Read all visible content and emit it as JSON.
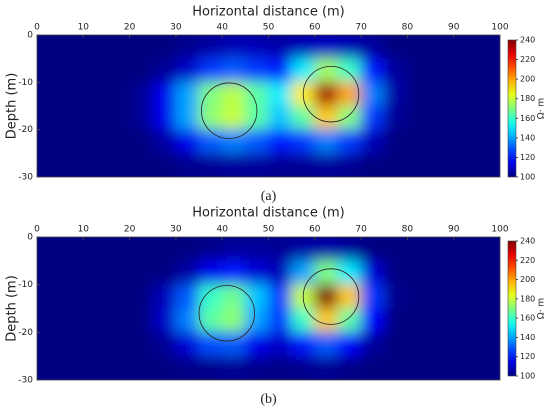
{
  "chart_data": [
    {
      "type": "heatmap",
      "title": "Horizontal distance (m)",
      "ylabel": "Depth (m)",
      "panel_label": "(a)",
      "clabel": "Ω· m",
      "xlim": [
        0,
        100
      ],
      "xticks": [
        0,
        10,
        20,
        30,
        40,
        50,
        60,
        70,
        80,
        90,
        100
      ],
      "ylim": [
        -30,
        0
      ],
      "yticks": [
        0,
        -10,
        -20,
        -30
      ],
      "clim": [
        100,
        240
      ],
      "cticks": [
        100,
        120,
        140,
        160,
        180,
        200,
        220,
        240
      ],
      "x": [
        2.5,
        7.5,
        12.5,
        17.5,
        22.5,
        27.5,
        32.5,
        37.5,
        42.5,
        47.5,
        52.5,
        57.5,
        62.5,
        67.5,
        72.5,
        77.5,
        82.5,
        87.5,
        92.5,
        97.5
      ],
      "y": [
        -2.5,
        -7.5,
        -12.5,
        -17.5,
        -22.5,
        -27.5
      ],
      "z": [
        [
          100,
          100,
          100,
          100,
          100,
          100,
          102,
          105,
          108,
          108,
          106,
          108,
          110,
          108,
          104,
          100,
          100,
          100,
          100,
          100
        ],
        [
          100,
          100,
          100,
          100,
          100,
          103,
          110,
          125,
          130,
          125,
          120,
          150,
          175,
          160,
          120,
          104,
          100,
          100,
          100,
          100
        ],
        [
          100,
          100,
          100,
          100,
          103,
          115,
          140,
          170,
          178,
          165,
          150,
          190,
          235,
          200,
          135,
          105,
          100,
          100,
          100,
          100
        ],
        [
          100,
          100,
          100,
          100,
          103,
          115,
          140,
          172,
          180,
          165,
          145,
          165,
          195,
          170,
          125,
          103,
          100,
          100,
          100,
          100
        ],
        [
          100,
          100,
          100,
          100,
          100,
          105,
          115,
          130,
          135,
          130,
          120,
          125,
          135,
          125,
          108,
          100,
          100,
          100,
          100,
          100
        ],
        [
          100,
          100,
          100,
          100,
          100,
          100,
          102,
          103,
          104,
          104,
          103,
          103,
          104,
          103,
          100,
          100,
          100,
          100,
          100,
          100
        ]
      ],
      "circles": [
        {
          "x": 41.5,
          "y": -16,
          "r": 6
        },
        {
          "x": 63.5,
          "y": -12.5,
          "r": 6
        }
      ]
    },
    {
      "type": "heatmap",
      "title": "Horizontal distance (m)",
      "ylabel": "Depth (m)",
      "panel_label": "(b)",
      "clabel": "Ω· m",
      "xlim": [
        0,
        100
      ],
      "xticks": [
        0,
        10,
        20,
        30,
        40,
        50,
        60,
        70,
        80,
        90,
        100
      ],
      "ylim": [
        -30,
        0
      ],
      "yticks": [
        0,
        -10,
        -20,
        -30
      ],
      "clim": [
        100,
        240
      ],
      "cticks": [
        100,
        120,
        140,
        160,
        180,
        200,
        220,
        240
      ],
      "x": [
        2.5,
        7.5,
        12.5,
        17.5,
        22.5,
        27.5,
        32.5,
        37.5,
        42.5,
        47.5,
        52.5,
        57.5,
        62.5,
        67.5,
        72.5,
        77.5,
        82.5,
        87.5,
        92.5,
        97.5
      ],
      "y": [
        -2.5,
        -7.5,
        -12.5,
        -17.5,
        -22.5,
        -27.5
      ],
      "z": [
        [
          100,
          100,
          100,
          100,
          100,
          100,
          100,
          102,
          104,
          104,
          103,
          105,
          106,
          104,
          100,
          100,
          100,
          100,
          100,
          100
        ],
        [
          100,
          100,
          100,
          100,
          100,
          100,
          105,
          115,
          120,
          112,
          108,
          140,
          170,
          150,
          112,
          100,
          100,
          100,
          100,
          100
        ],
        [
          100,
          100,
          100,
          100,
          100,
          108,
          130,
          160,
          168,
          145,
          125,
          180,
          240,
          195,
          125,
          102,
          100,
          100,
          100,
          100
        ],
        [
          100,
          100,
          100,
          100,
          100,
          110,
          135,
          165,
          172,
          140,
          125,
          160,
          195,
          165,
          118,
          100,
          100,
          100,
          100,
          100
        ],
        [
          100,
          100,
          100,
          100,
          100,
          103,
          112,
          128,
          130,
          115,
          110,
          120,
          130,
          118,
          104,
          100,
          100,
          100,
          100,
          100
        ],
        [
          100,
          100,
          100,
          100,
          100,
          100,
          101,
          102,
          103,
          102,
          101,
          102,
          103,
          101,
          100,
          100,
          100,
          100,
          100,
          100
        ]
      ],
      "circles": [
        {
          "x": 41,
          "y": -16,
          "r": 6
        },
        {
          "x": 63.5,
          "y": -12.5,
          "r": 6
        }
      ]
    }
  ]
}
